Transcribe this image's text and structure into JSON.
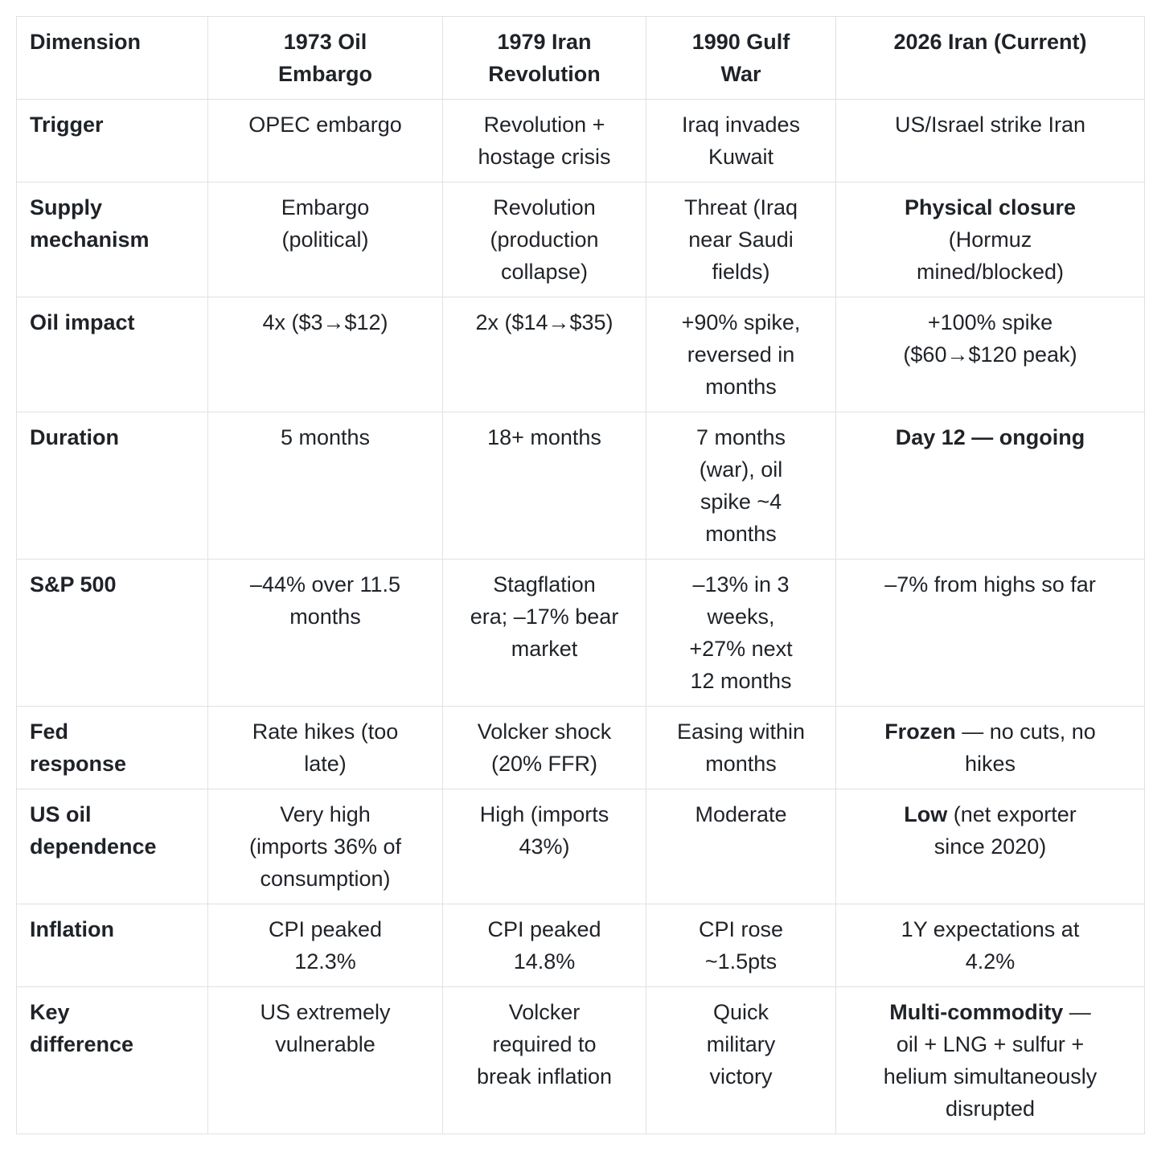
{
  "page": {
    "background_color": "#ffffff",
    "text_color": "#1f2328",
    "border_color": "#e0e1e3"
  },
  "table": {
    "columns": [
      "Dimension",
      "1973 Oil\nEmbargo",
      "1979 Iran\nRevolution",
      "1990 Gulf\nWar",
      "2026 Iran (Current)"
    ],
    "rows": [
      {
        "label": "Trigger",
        "cells": [
          [
            {
              "text": "OPEC embargo",
              "bold": false
            }
          ],
          [
            {
              "text": "Revolution +\nhostage crisis",
              "bold": false
            }
          ],
          [
            {
              "text": "Iraq invades\nKuwait",
              "bold": false
            }
          ],
          [
            {
              "text": "US/Israel strike Iran",
              "bold": false
            }
          ]
        ]
      },
      {
        "label": "Supply\nmechanism",
        "cells": [
          [
            {
              "text": "Embargo\n(political)",
              "bold": false
            }
          ],
          [
            {
              "text": "Revolution\n(production\ncollapse)",
              "bold": false
            }
          ],
          [
            {
              "text": "Threat (Iraq\nnear Saudi\nfields)",
              "bold": false
            }
          ],
          [
            {
              "text": "Physical closure",
              "bold": true
            },
            {
              "text": "\n(Hormuz\nmined/blocked)",
              "bold": false
            }
          ]
        ]
      },
      {
        "label": "Oil impact",
        "cells": [
          [
            {
              "text": "4x ($3→$12)",
              "bold": false
            }
          ],
          [
            {
              "text": "2x ($14→$35)",
              "bold": false
            }
          ],
          [
            {
              "text": "+90% spike,\nreversed in\nmonths",
              "bold": false
            }
          ],
          [
            {
              "text": "+100% spike\n($60→$120 peak)",
              "bold": false
            }
          ]
        ]
      },
      {
        "label": "Duration",
        "cells": [
          [
            {
              "text": "5 months",
              "bold": false
            }
          ],
          [
            {
              "text": "18+ months",
              "bold": false
            }
          ],
          [
            {
              "text": "7 months\n(war), oil\nspike ~4\nmonths",
              "bold": false
            }
          ],
          [
            {
              "text": "Day 12 — ongoing",
              "bold": true
            }
          ]
        ]
      },
      {
        "label": "S&P 500",
        "cells": [
          [
            {
              "text": "–44% over 11.5\nmonths",
              "bold": false
            }
          ],
          [
            {
              "text": "Stagflation\nera; –17% bear\nmarket",
              "bold": false
            }
          ],
          [
            {
              "text": "–13% in 3\nweeks,\n+27% next\n12 months",
              "bold": false
            }
          ],
          [
            {
              "text": "–7% from highs so far",
              "bold": false
            }
          ]
        ]
      },
      {
        "label": "Fed\nresponse",
        "cells": [
          [
            {
              "text": "Rate hikes (too\nlate)",
              "bold": false
            }
          ],
          [
            {
              "text": "Volcker shock\n(20% FFR)",
              "bold": false
            }
          ],
          [
            {
              "text": "Easing within\nmonths",
              "bold": false
            }
          ],
          [
            {
              "text": "Frozen",
              "bold": true
            },
            {
              "text": " — no cuts, no\nhikes",
              "bold": false
            }
          ]
        ]
      },
      {
        "label": "US oil\ndependence",
        "cells": [
          [
            {
              "text": "Very high\n(imports 36% of\nconsumption)",
              "bold": false
            }
          ],
          [
            {
              "text": "High (imports\n43%)",
              "bold": false
            }
          ],
          [
            {
              "text": "Moderate",
              "bold": false
            }
          ],
          [
            {
              "text": "Low",
              "bold": true
            },
            {
              "text": " (net exporter\nsince 2020)",
              "bold": false
            }
          ]
        ]
      },
      {
        "label": "Inflation",
        "cells": [
          [
            {
              "text": "CPI peaked\n12.3%",
              "bold": false
            }
          ],
          [
            {
              "text": "CPI peaked\n14.8%",
              "bold": false
            }
          ],
          [
            {
              "text": "CPI rose\n~1.5pts",
              "bold": false
            }
          ],
          [
            {
              "text": "1Y expectations at\n4.2%",
              "bold": false
            }
          ]
        ]
      },
      {
        "label": "Key\ndifference",
        "cells": [
          [
            {
              "text": "US extremely\nvulnerable",
              "bold": false
            }
          ],
          [
            {
              "text": "Volcker\nrequired to\nbreak inflation",
              "bold": false
            }
          ],
          [
            {
              "text": "Quick\nmilitary\nvictory",
              "bold": false
            }
          ],
          [
            {
              "text": "Multi-commodity",
              "bold": true
            },
            {
              "text": " —\noil + LNG + sulfur +\nhelium simultaneously\ndisrupted",
              "bold": false
            }
          ]
        ]
      }
    ]
  }
}
